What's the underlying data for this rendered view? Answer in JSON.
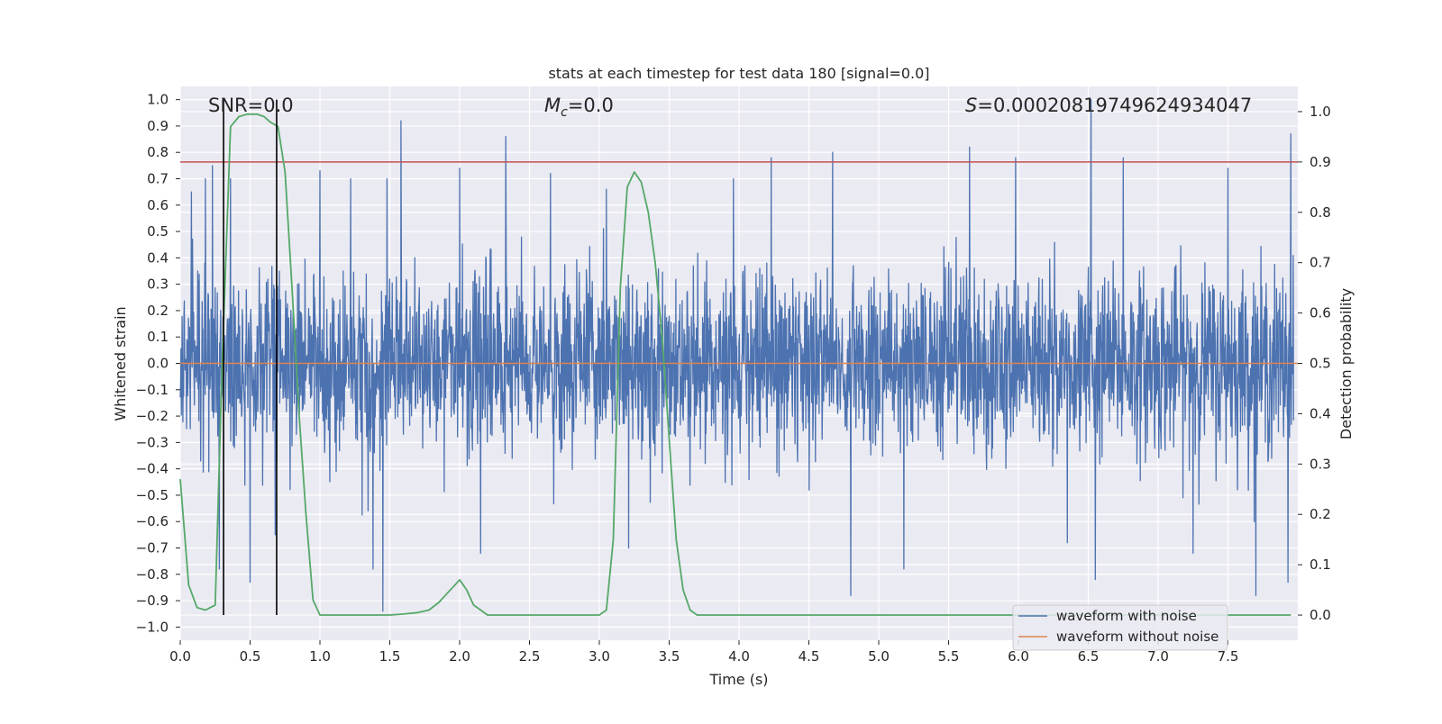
{
  "chart_data": {
    "type": "line",
    "title": "stats at each timestep for test data 180 [signal=0.0]",
    "xlabel": "Time (s)",
    "ylabel": "Whitened strain",
    "y2label": "Detection probability",
    "xlim": [
      0.0,
      8.0
    ],
    "ylim": [
      -1.05,
      1.05
    ],
    "y2lim": [
      -0.05,
      1.05
    ],
    "x_ticks": [
      "0.0",
      "0.5",
      "1.0",
      "1.5",
      "2.0",
      "2.5",
      "3.0",
      "3.5",
      "4.0",
      "4.5",
      "5.0",
      "5.5",
      "6.0",
      "6.5",
      "7.0",
      "7.5"
    ],
    "y_ticks": [
      "1.0",
      "0.9",
      "0.8",
      "0.7",
      "0.6",
      "0.5",
      "0.4",
      "0.3",
      "0.2",
      "0.1",
      "0.0",
      "−0.1",
      "−0.2",
      "−0.3",
      "−0.4",
      "−0.5",
      "−0.6",
      "−0.7",
      "−0.8",
      "−0.9",
      "−1.0"
    ],
    "y2_ticks": [
      "1.0",
      "0.9",
      "0.8",
      "0.7",
      "0.6",
      "0.5",
      "0.4",
      "0.3",
      "0.2",
      "0.1",
      "0.0"
    ],
    "grid": true,
    "annotations": {
      "snr": "SNR=0.0",
      "mc_symbol": "M",
      "mc_sub": "c",
      "mc_value": "=0.0",
      "s_symbol": "S",
      "s_value": "=0.00020819749624934047"
    },
    "legend": {
      "placement": "lower-right",
      "entries": [
        "waveform with noise",
        "waveform without noise"
      ]
    },
    "colors": {
      "noise": "#4c72b0",
      "clean": "#dd8452",
      "probability": "#55a868",
      "threshold": "#c44e52",
      "marker": "#000000",
      "plot_bg": "#eaeaf2",
      "grid": "#ffffff"
    },
    "series": [
      {
        "name": "waveform with noise",
        "axis": "left",
        "description_of_envelope": "dense noise, typical amplitude about ±0.35 with spikes",
        "spikes": [
          {
            "x": 0.08,
            "y": 0.65
          },
          {
            "x": 0.18,
            "y": 0.7
          },
          {
            "x": 0.23,
            "y": 0.75
          },
          {
            "x": 0.36,
            "y": 0.7
          },
          {
            "x": 1.0,
            "y": 0.73
          },
          {
            "x": 1.22,
            "y": 0.7
          },
          {
            "x": 1.48,
            "y": 0.7
          },
          {
            "x": 1.58,
            "y": 0.92
          },
          {
            "x": 2.0,
            "y": 0.74
          },
          {
            "x": 2.33,
            "y": 0.86
          },
          {
            "x": 2.65,
            "y": 0.72
          },
          {
            "x": 3.05,
            "y": 0.66
          },
          {
            "x": 3.96,
            "y": 0.7
          },
          {
            "x": 4.23,
            "y": 0.78
          },
          {
            "x": 4.67,
            "y": 0.8
          },
          {
            "x": 5.65,
            "y": 0.82
          },
          {
            "x": 5.98,
            "y": 0.78
          },
          {
            "x": 6.52,
            "y": 1.0
          },
          {
            "x": 6.75,
            "y": 0.78
          },
          {
            "x": 7.5,
            "y": 0.74
          },
          {
            "x": 7.95,
            "y": 0.87
          },
          {
            "x": 0.28,
            "y": -0.78
          },
          {
            "x": 0.5,
            "y": -0.83
          },
          {
            "x": 0.68,
            "y": -0.65
          },
          {
            "x": 1.45,
            "y": -0.94
          },
          {
            "x": 1.38,
            "y": -0.78
          },
          {
            "x": 2.15,
            "y": -0.72
          },
          {
            "x": 3.21,
            "y": -0.7
          },
          {
            "x": 4.8,
            "y": -0.88
          },
          {
            "x": 5.18,
            "y": -0.78
          },
          {
            "x": 6.35,
            "y": -0.68
          },
          {
            "x": 6.55,
            "y": -0.82
          },
          {
            "x": 7.25,
            "y": -0.72
          },
          {
            "x": 7.7,
            "y": -0.88
          },
          {
            "x": 7.93,
            "y": -0.83
          }
        ]
      },
      {
        "name": "waveform without noise",
        "axis": "left",
        "x": [
          0.0,
          8.0
        ],
        "y": [
          0.0,
          0.0
        ]
      },
      {
        "axis": "right",
        "x": [
          0.0,
          0.06,
          0.12,
          0.18,
          0.25,
          0.3,
          0.36,
          0.42,
          0.48,
          0.55,
          0.6,
          0.64,
          0.7,
          0.75,
          0.8,
          0.85,
          0.9,
          0.95,
          1.0,
          1.1,
          1.3,
          1.5,
          1.6,
          1.7,
          1.78,
          1.85,
          1.9,
          1.95,
          2.0,
          2.05,
          2.1,
          2.2,
          2.4,
          2.6,
          2.8,
          3.0,
          3.05,
          3.1,
          3.15,
          3.2,
          3.25,
          3.3,
          3.35,
          3.4,
          3.45,
          3.5,
          3.55,
          3.6,
          3.65,
          3.7,
          3.8,
          4.0,
          5.0,
          6.0,
          7.0,
          7.95
        ],
        "y": [
          0.27,
          0.06,
          0.015,
          0.01,
          0.02,
          0.5,
          0.97,
          0.99,
          0.995,
          0.995,
          0.99,
          0.98,
          0.97,
          0.88,
          0.65,
          0.4,
          0.2,
          0.03,
          0.0,
          0.0,
          0.0,
          0.0,
          0.002,
          0.005,
          0.01,
          0.025,
          0.04,
          0.055,
          0.07,
          0.05,
          0.02,
          0.0,
          0.0,
          0.0,
          0.0,
          0.0,
          0.01,
          0.15,
          0.65,
          0.85,
          0.88,
          0.86,
          0.8,
          0.7,
          0.55,
          0.35,
          0.15,
          0.05,
          0.01,
          0.0,
          0.0,
          0.0,
          0.0,
          0.0,
          0.0,
          0.0
        ]
      },
      {
        "axis": "right",
        "x": [
          0.0,
          8.0
        ],
        "y": [
          0.9,
          0.9
        ]
      }
    ],
    "vertical_lines": [
      0.31,
      0.69
    ]
  }
}
